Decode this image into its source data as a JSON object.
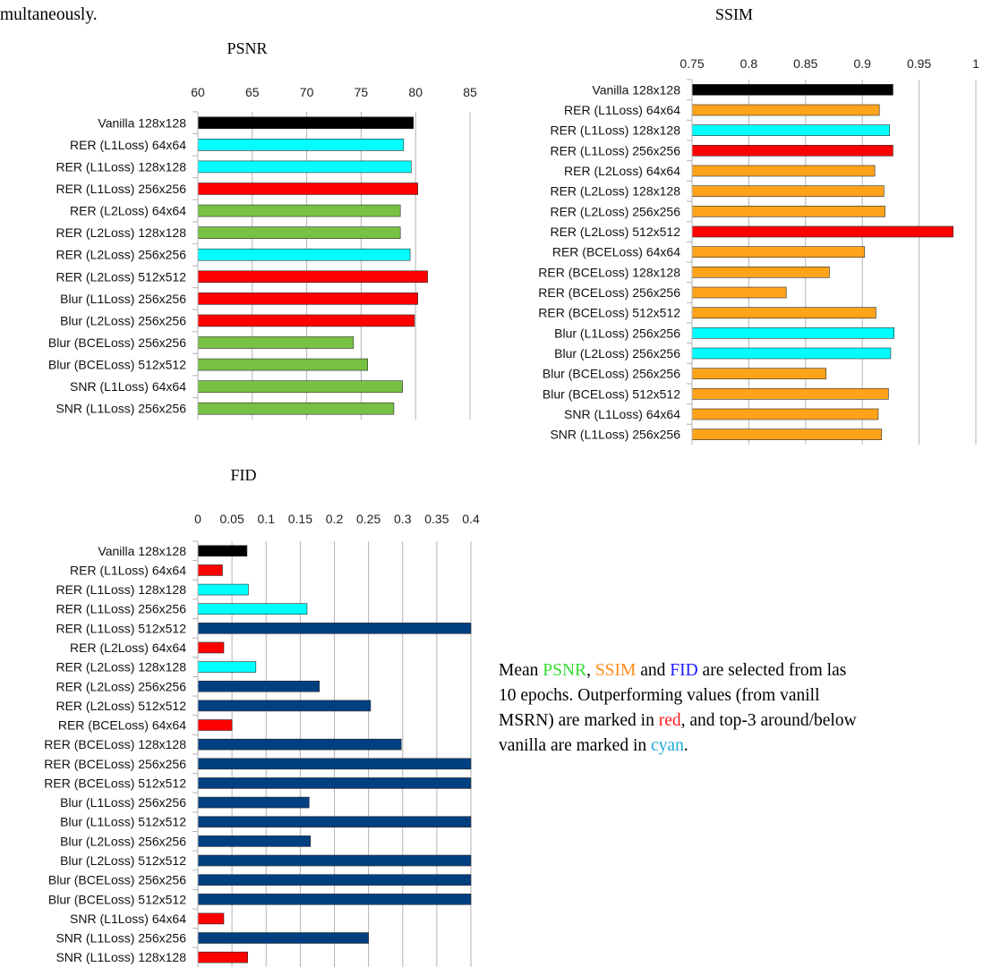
{
  "page": {
    "top_fragment": "multaneously.",
    "caption": {
      "lines": [
        [
          {
            "text": "Mean ",
            "color": "#000000"
          },
          {
            "text": "PSNR",
            "color": "#33dd33"
          },
          {
            "text": ", ",
            "color": "#000000"
          },
          {
            "text": "SSIM",
            "color": "#ff8c1a"
          },
          {
            "text": " and ",
            "color": "#000000"
          },
          {
            "text": "FID",
            "color": "#1a1aff"
          },
          {
            "text": " are selected from las",
            "color": "#000000"
          }
        ],
        [
          {
            "text": "10 epochs.  Outperforming values (from vanill",
            "color": "#000000"
          }
        ],
        [
          {
            "text": "MSRN) are marked in ",
            "color": "#000000"
          },
          {
            "text": "red",
            "color": "#ff1a1a"
          },
          {
            "text": ", and top-3 around/below",
            "color": "#000000"
          }
        ],
        [
          {
            "text": "vanilla are marked in ",
            "color": "#000000"
          },
          {
            "text": "cyan",
            "color": "#1aaadd"
          },
          {
            "text": ".",
            "color": "#000000"
          }
        ]
      ]
    }
  },
  "colors": {
    "black": "#000000",
    "cyan": "#00ffff",
    "red": "#ff0000",
    "green": "#77c144",
    "orange": "#ffa31a",
    "navy": "#003f80"
  },
  "chart_data": [
    {
      "id": "psnr",
      "type": "bar",
      "orientation": "horizontal",
      "title": "PSNR",
      "xlim": [
        60,
        85
      ],
      "xticks": [
        "60",
        "65",
        "70",
        "75",
        "80",
        "85"
      ],
      "grid": true,
      "categories": [
        "Vanilla 128x128",
        "RER (L1Loss) 64x64",
        "RER (L1Loss) 128x128",
        "RER (L1Loss) 256x256",
        "RER (L2Loss) 64x64",
        "RER (L2Loss) 128x128",
        "RER (L2Loss) 256x256",
        "RER (L2Loss) 512x512",
        "Blur (L1Loss) 256x256",
        "Blur (L2Loss) 256x256",
        "Blur (BCELoss) 256x256",
        "Blur (BCELoss) 512x512",
        "SNR (L1Loss) 64x64",
        "SNR (L1Loss) 256x256"
      ],
      "values": [
        79.8,
        78.9,
        79.6,
        80.2,
        78.6,
        78.6,
        79.5,
        81.1,
        80.2,
        79.9,
        74.3,
        75.6,
        78.8,
        78.0
      ],
      "bar_colors": [
        "black",
        "cyan",
        "cyan",
        "red",
        "green",
        "green",
        "cyan",
        "red",
        "red",
        "red",
        "green",
        "green",
        "green",
        "green"
      ]
    },
    {
      "id": "ssim",
      "type": "bar",
      "orientation": "horizontal",
      "title": "SSIM",
      "xlim": [
        0.75,
        1.0
      ],
      "xticks": [
        "0.75",
        "0.8",
        "0.85",
        "0.9",
        "0.95",
        "1"
      ],
      "grid": true,
      "categories": [
        "Vanilla 128x128",
        "RER (L1Loss) 64x64",
        "RER (L1Loss) 128x128",
        "RER (L1Loss) 256x256",
        "RER (L2Loss) 64x64",
        "RER (L2Loss) 128x128",
        "RER (L2Loss) 256x256",
        "RER (L2Loss) 512x512",
        "RER (BCELoss) 64x64",
        "RER (BCELoss) 128x128",
        "RER (BCELoss) 256x256",
        "RER (BCELoss) 512x512",
        "Blur (L1Loss) 256x256",
        "Blur (L2Loss) 256x256",
        "Blur (BCELoss) 256x256",
        "Blur (BCELoss) 512x512",
        "SNR (L1Loss) 64x64",
        "SNR (L1Loss) 256x256"
      ],
      "values": [
        0.927,
        0.915,
        0.924,
        0.927,
        0.911,
        0.919,
        0.92,
        0.98,
        0.902,
        0.871,
        0.833,
        0.912,
        0.928,
        0.925,
        0.868,
        0.923,
        0.914,
        0.917
      ],
      "bar_colors": [
        "black",
        "orange",
        "cyan",
        "red",
        "orange",
        "orange",
        "orange",
        "red",
        "orange",
        "orange",
        "orange",
        "orange",
        "cyan",
        "cyan",
        "orange",
        "orange",
        "orange",
        "orange"
      ]
    },
    {
      "id": "fid",
      "type": "bar",
      "orientation": "horizontal",
      "title": "FID",
      "xlim": [
        0,
        0.4
      ],
      "xticks": [
        "0",
        "0.05",
        "0.1",
        "0.15",
        "0.2",
        "0.25",
        "0.3",
        "0.35",
        "0.4"
      ],
      "grid": true,
      "categories": [
        "Vanilla 128x128",
        "RER (L1Loss) 64x64",
        "RER (L1Loss) 128x128",
        "RER (L1Loss) 256x256",
        "RER (L1Loss) 512x512",
        "RER (L2Loss) 64x64",
        "RER (L2Loss) 128x128",
        "RER (L2Loss) 256x256",
        "RER (L2Loss) 512x512",
        "RER (BCELoss) 64x64",
        "RER (BCELoss) 128x128",
        "RER (BCELoss) 256x256",
        "RER (BCELoss) 512x512",
        "Blur (L1Loss) 256x256",
        "Blur (L1Loss) 512x512",
        "Blur (L2Loss) 256x256",
        "Blur (L2Loss) 512x512",
        "Blur (BCELoss) 256x256",
        "Blur (BCELoss) 512x512",
        "SNR (L1Loss) 64x64",
        "SNR (L1Loss) 256x256",
        "SNR (L1Loss) 128x128"
      ],
      "values": [
        0.072,
        0.036,
        0.074,
        0.16,
        0.4,
        0.038,
        0.085,
        0.178,
        0.253,
        0.05,
        0.298,
        0.4,
        0.4,
        0.163,
        0.4,
        0.165,
        0.4,
        0.4,
        0.4,
        0.038,
        0.25,
        0.073
      ],
      "bar_colors": [
        "black",
        "red",
        "cyan",
        "cyan",
        "navy",
        "red",
        "cyan",
        "navy",
        "navy",
        "red",
        "navy",
        "navy",
        "navy",
        "navy",
        "navy",
        "navy",
        "navy",
        "navy",
        "navy",
        "red",
        "navy",
        "red"
      ]
    }
  ]
}
